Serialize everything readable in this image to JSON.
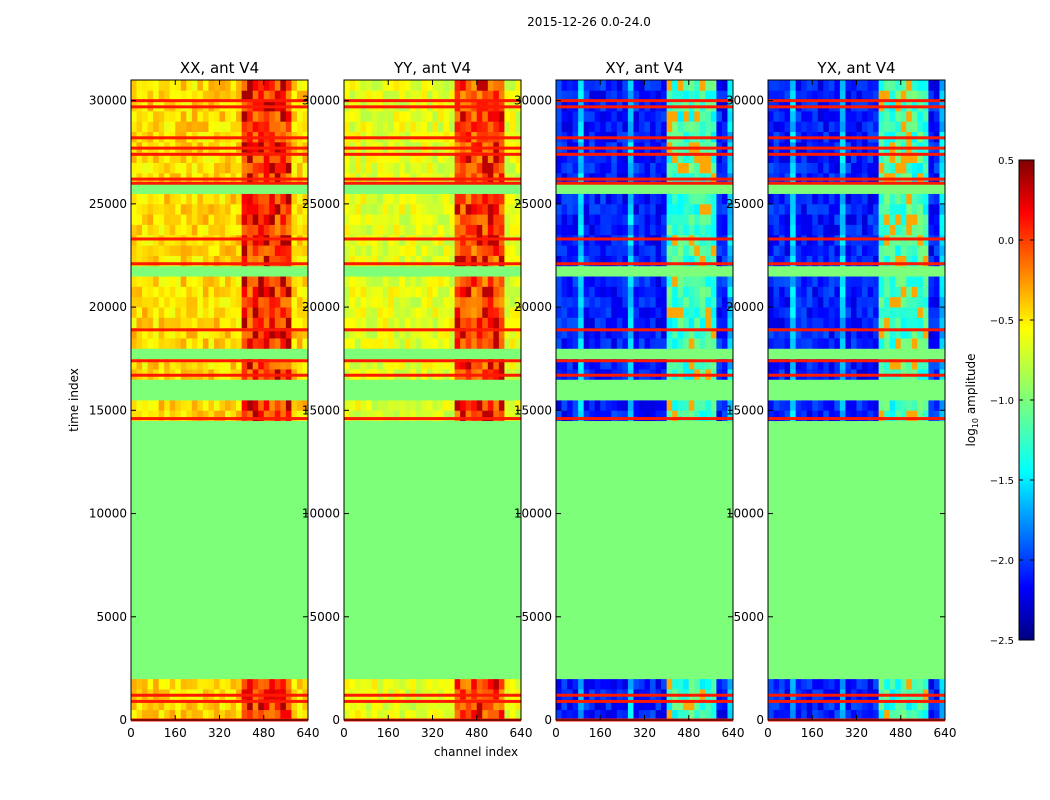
{
  "chart_data": {
    "type": "heatmap",
    "suptitle": "2015-12-26 0.0-24.0",
    "xlabel": "channel index",
    "ylabel": "time index",
    "xlim": [
      0,
      640
    ],
    "ylim": [
      0,
      31000
    ],
    "xticks": [
      0,
      160,
      320,
      480,
      640
    ],
    "yticks": [
      0,
      5000,
      10000,
      15000,
      20000,
      25000,
      30000
    ],
    "colorbar": {
      "label": "log10 amplitude",
      "label_prefix": "log",
      "label_sub": "10",
      "label_suffix": " amplitude",
      "vmin": -2.5,
      "vmax": 0.5,
      "ticks": [
        0.5,
        0.0,
        -0.5,
        -1.0,
        -1.5,
        -2.0,
        -2.5
      ],
      "tick_labels": [
        "0.5",
        "0.0",
        "−0.5",
        "−1.0",
        "−1.5",
        "−2.0",
        "−2.5"
      ],
      "colormap": "jet",
      "jet_stops": [
        "#000080",
        "#0000ff",
        "#00ffff",
        "#7dff7a",
        "#ffff00",
        "#ff0000",
        "#800000"
      ]
    },
    "flagged_value": -1.0,
    "flagged_time_ranges": [
      [
        2200,
        14600
      ],
      [
        15300,
        16700
      ],
      [
        17600,
        18000
      ],
      [
        21500,
        22100
      ],
      [
        25600,
        26000
      ]
    ],
    "rfi_channel_band": [
      400,
      570
    ],
    "horizontal_flag_lines": [
      0,
      900,
      1200,
      14600,
      16700,
      17400,
      18900,
      22100,
      23300,
      26000,
      26200,
      27400,
      27700,
      28200,
      29700,
      30000
    ],
    "panels": [
      {
        "title": "XX, ant V4",
        "pol": "XX",
        "antenna": "V4",
        "typical_log_amp": -0.45,
        "band_log_amp": 0.05,
        "peak_log_amp": 0.4
      },
      {
        "title": "YY, ant V4",
        "pol": "YY",
        "antenna": "V4",
        "typical_log_amp": -0.65,
        "band_log_amp": 0.0,
        "peak_log_amp": 0.35
      },
      {
        "title": "XY, ant V4",
        "pol": "XY",
        "antenna": "V4",
        "typical_log_amp": -2.1,
        "band_log_amp": -1.2,
        "peak_log_amp": -0.3
      },
      {
        "title": "YX, ant V4",
        "pol": "YX",
        "antenna": "V4",
        "typical_log_amp": -2.1,
        "band_log_amp": -1.2,
        "peak_log_amp": -0.3
      }
    ]
  }
}
